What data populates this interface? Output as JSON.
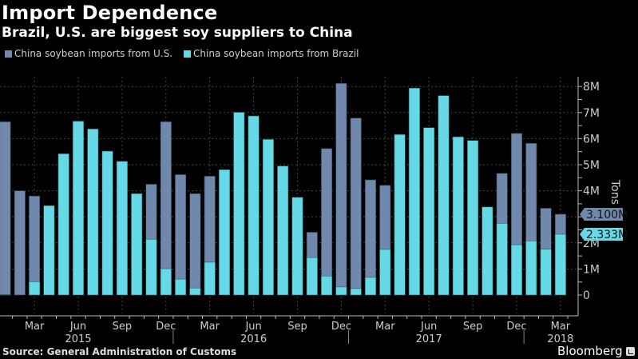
{
  "header": {
    "title": "Import Dependence",
    "subtitle": "Brazil, U.S. are biggest soy suppliers to China"
  },
  "footer": {
    "source": "Source: General Administration of Customs",
    "brand": "Bloomberg"
  },
  "colors": {
    "us": "#7088ab",
    "brazil": "#66d9e6",
    "background": "#000000",
    "grid": "#444444"
  },
  "chart_data": {
    "type": "bar",
    "mode": "overlay",
    "title": "Import Dependence",
    "subtitle": "Brazil, U.S. are biggest soy suppliers to China",
    "ylabel": "Tons",
    "xlabel": "",
    "ylim": [
      0,
      8500000
    ],
    "yticks": [
      0,
      1000000,
      2000000,
      3000000,
      4000000,
      5000000,
      6000000,
      7000000,
      8000000
    ],
    "ytick_labels": [
      "0",
      "1M",
      "2M",
      "3M",
      "4M",
      "5M",
      "6M",
      "7M",
      "8M"
    ],
    "grid": true,
    "legend_position": "top-left",
    "categories": [
      "2015-01",
      "2015-02",
      "2015-03",
      "2015-04",
      "2015-05",
      "2015-06",
      "2015-07",
      "2015-08",
      "2015-09",
      "2015-10",
      "2015-11",
      "2015-12",
      "2016-01",
      "2016-02",
      "2016-03",
      "2016-04",
      "2016-05",
      "2016-06",
      "2016-07",
      "2016-08",
      "2016-09",
      "2016-10",
      "2016-11",
      "2016-12",
      "2017-01",
      "2017-02",
      "2017-03",
      "2017-04",
      "2017-05",
      "2017-06",
      "2017-07",
      "2017-08",
      "2017-09",
      "2017-10",
      "2017-11",
      "2017-12",
      "2018-01",
      "2018-02",
      "2018-03"
    ],
    "xtick_labels": [
      {
        "month_index": 2,
        "label": "Mar"
      },
      {
        "month_index": 5,
        "label": "Jun"
      },
      {
        "month_index": 8,
        "label": "Sep"
      },
      {
        "month_index": 11,
        "label": "Dec"
      },
      {
        "month_index": 14,
        "label": "Mar"
      },
      {
        "month_index": 17,
        "label": "Jun"
      },
      {
        "month_index": 20,
        "label": "Sep"
      },
      {
        "month_index": 23,
        "label": "Dec"
      },
      {
        "month_index": 26,
        "label": "Mar"
      },
      {
        "month_index": 29,
        "label": "Jun"
      },
      {
        "month_index": 32,
        "label": "Sep"
      },
      {
        "month_index": 35,
        "label": "Dec"
      },
      {
        "month_index": 38,
        "label": "Mar"
      }
    ],
    "year_labels": [
      {
        "month_index": 5,
        "label": "2015"
      },
      {
        "month_index": 17,
        "label": "2016"
      },
      {
        "month_index": 29,
        "label": "2017"
      },
      {
        "month_index": 38,
        "label": "2018"
      }
    ],
    "year_dividers": [
      11.5,
      23.5,
      35.5
    ],
    "series": [
      {
        "name": "China soybean imports from U.S.",
        "color": "#7088ab",
        "values": [
          6650000,
          4000000,
          3800000,
          0,
          0,
          0,
          0,
          0,
          0,
          0,
          4250000,
          6650000,
          4620000,
          3890000,
          4560000,
          0,
          0,
          0,
          0,
          0,
          0,
          2410000,
          5620000,
          8120000,
          6790000,
          4420000,
          4210000,
          0,
          0,
          0,
          0,
          0,
          0,
          0,
          4670000,
          6200000,
          5820000,
          3330000,
          3100000
        ],
        "last_value_label": "3.100M"
      },
      {
        "name": "China soybean imports from Brazil",
        "color": "#66d9e6",
        "values": [
          20000,
          0,
          510000,
          3430000,
          5420000,
          6670000,
          6370000,
          5520000,
          5130000,
          3890000,
          2140000,
          1010000,
          610000,
          270000,
          1260000,
          4810000,
          7010000,
          6870000,
          5970000,
          4950000,
          3750000,
          1440000,
          730000,
          310000,
          250000,
          680000,
          1750000,
          6160000,
          7940000,
          6420000,
          7650000,
          6070000,
          5930000,
          3380000,
          2750000,
          1930000,
          2080000,
          1760000,
          2333000
        ],
        "last_value_label": "2.333M"
      }
    ]
  }
}
